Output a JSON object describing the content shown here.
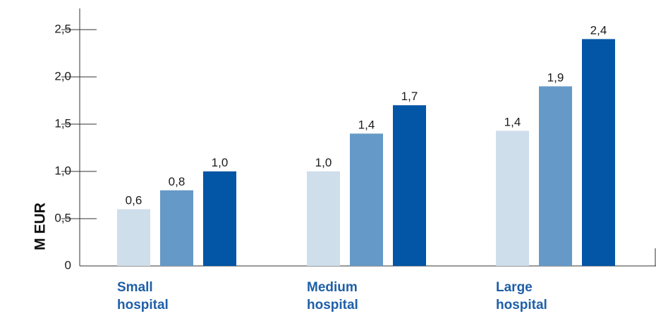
{
  "chart_data": {
    "type": "bar",
    "title": "",
    "xlabel": "",
    "ylabel": "M EUR",
    "ylim": [
      0,
      2.5
    ],
    "yticks": [
      0,
      0.5,
      1.0,
      1.5,
      2.0,
      2.5
    ],
    "ytick_labels": [
      "0",
      "0,5",
      "1,0",
      "1,5",
      "2,0",
      "2,5"
    ],
    "grid": false,
    "categories": [
      {
        "lines": [
          "Small",
          "hospital"
        ]
      },
      {
        "lines": [
          "Medium",
          "hospital"
        ]
      },
      {
        "lines": [
          "Large",
          "hospital"
        ]
      }
    ],
    "series": [
      {
        "color": "#cfdeeb",
        "values": [
          0.6,
          1.0,
          1.43
        ],
        "labels": [
          "0,6",
          "1,0",
          "1,4"
        ]
      },
      {
        "color": "#6599c8",
        "values": [
          0.8,
          1.4,
          1.9
        ],
        "labels": [
          "0,8",
          "1,4",
          "1,9"
        ]
      },
      {
        "color": "#0355a5",
        "values": [
          1.0,
          1.7,
          2.4
        ],
        "labels": [
          "1,0",
          "1,7",
          "2,4"
        ]
      }
    ]
  },
  "colors": {
    "category_label": "#1f5fa8",
    "axis": "#333333"
  }
}
